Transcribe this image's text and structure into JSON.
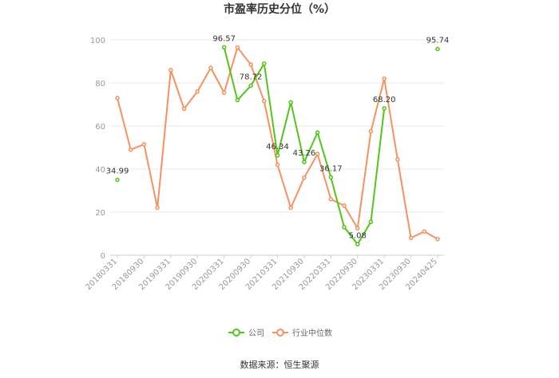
{
  "chart_data": {
    "type": "line",
    "title": "市盈率历史分位（%）",
    "x": [
      "20180331",
      "20180630",
      "20180930",
      "20181231",
      "20190331",
      "20190630",
      "20190930",
      "20191231",
      "20200331",
      "20200630",
      "20200930",
      "20201231",
      "20210331",
      "20210630",
      "20210930",
      "20211231",
      "20220331",
      "20220630",
      "20220930",
      "20221231",
      "20230331",
      "20230630",
      "20230930",
      "20231231",
      "20240425"
    ],
    "xticks": [
      "20180331",
      "20180930",
      "20190331",
      "20190930",
      "20200331",
      "20200930",
      "20210331",
      "20210930",
      "20220331",
      "20220930",
      "20230331",
      "20230930",
      "20240425"
    ],
    "ylim": [
      0,
      100
    ],
    "yticks": [
      0,
      20,
      40,
      60,
      80,
      100
    ],
    "grid": true,
    "legend_position": "bottom",
    "series": [
      {
        "name": "公司",
        "color": "#52c41a",
        "values": [
          34.99,
          null,
          null,
          null,
          null,
          null,
          null,
          null,
          96.57,
          72,
          78.72,
          89,
          46.34,
          71,
          43.26,
          57,
          36.17,
          13,
          5.08,
          15.5,
          68.2,
          null,
          null,
          null,
          95.74
        ],
        "labels": [
          {
            "index": 0,
            "text": "34.99"
          },
          {
            "index": 8,
            "text": "96.57"
          },
          {
            "index": 10,
            "text": "78.72"
          },
          {
            "index": 12,
            "text": "46.34"
          },
          {
            "index": 14,
            "text": "43.26"
          },
          {
            "index": 16,
            "text": "36.17"
          },
          {
            "index": 18,
            "text": "5.08"
          },
          {
            "index": 20,
            "text": "68.20"
          },
          {
            "index": 24,
            "text": "95.74"
          }
        ]
      },
      {
        "name": "行业中位数",
        "color": "#f5925f",
        "values": [
          73,
          49,
          51.5,
          22,
          86,
          68,
          76,
          87,
          75.5,
          96.5,
          88.5,
          71.5,
          42,
          22,
          36,
          47,
          26,
          23,
          12.5,
          57.5,
          82,
          44.5,
          8,
          11,
          7.5
        ]
      }
    ]
  },
  "source_text": "数据来源：恒生聚源"
}
